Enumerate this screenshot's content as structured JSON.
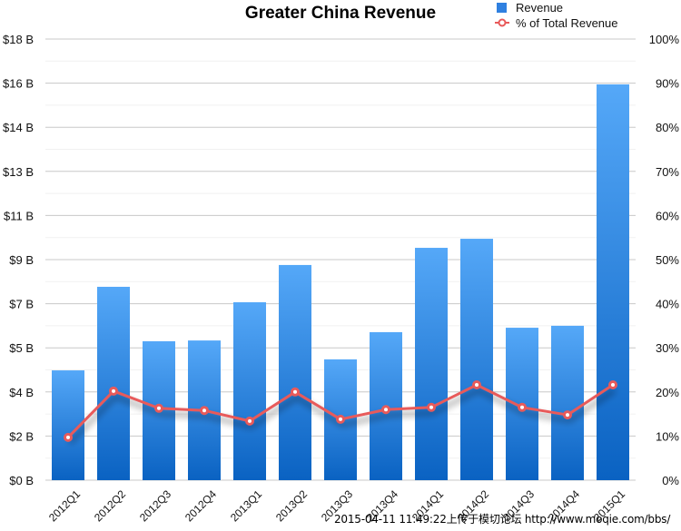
{
  "chart_data": {
    "type": "bar",
    "title": "Greater China Revenue",
    "xlabel": "",
    "ylabel": "",
    "categories": [
      "2012Q1",
      "2012Q2",
      "2012Q3",
      "2012Q4",
      "2013Q1",
      "2013Q2",
      "2013Q3",
      "2013Q4",
      "2014Q1",
      "2014Q2",
      "2014Q3",
      "2014Q4",
      "2015Q1"
    ],
    "series": [
      {
        "name": "Revenue",
        "type": "bar",
        "axis": "left",
        "unit": "billion USD",
        "color": "#2f80e0",
        "values": [
          4.48,
          7.89,
          5.67,
          5.7,
          7.26,
          8.78,
          4.93,
          6.04,
          9.48,
          9.85,
          6.22,
          6.3,
          16.15
        ]
      },
      {
        "name": "% of Total Revenue",
        "type": "line",
        "axis": "right",
        "unit": "percent",
        "color": "#e85a5a",
        "values": [
          9.7,
          20.2,
          16.3,
          15.8,
          13.4,
          20.0,
          13.8,
          16.0,
          16.5,
          21.6,
          16.5,
          14.8,
          21.6
        ]
      }
    ],
    "y_left": {
      "range": [
        0,
        18
      ],
      "tick_values": [
        0,
        1.8,
        3.6,
        5.4,
        7.2,
        9,
        10.8,
        12.6,
        14.4,
        16.2,
        18
      ],
      "tick_labels": [
        "$0 B",
        "$2 B",
        "$4 B",
        "$5 B",
        "$7 B",
        "$9 B",
        "$11 B",
        "$13 B",
        "$14 B",
        "$16 B",
        "$18 B"
      ]
    },
    "y_right": {
      "range": [
        0,
        100
      ],
      "tick_labels": [
        "0%",
        "10%",
        "20%",
        "30%",
        "40%",
        "50%",
        "60%",
        "70%",
        "80%",
        "90%",
        "100%"
      ]
    },
    "grid": true,
    "legend": {
      "placement": "top-right",
      "entries": [
        {
          "label": "Revenue",
          "marker": "square",
          "color": "#2f80e0"
        },
        {
          "label": "% of Total Revenue",
          "marker": "circle-line",
          "color": "#e85a5a"
        }
      ]
    }
  },
  "watermark": "2015-04-11 11:49:22上传于模切论坛 http://www.moqie.com/bbs/"
}
